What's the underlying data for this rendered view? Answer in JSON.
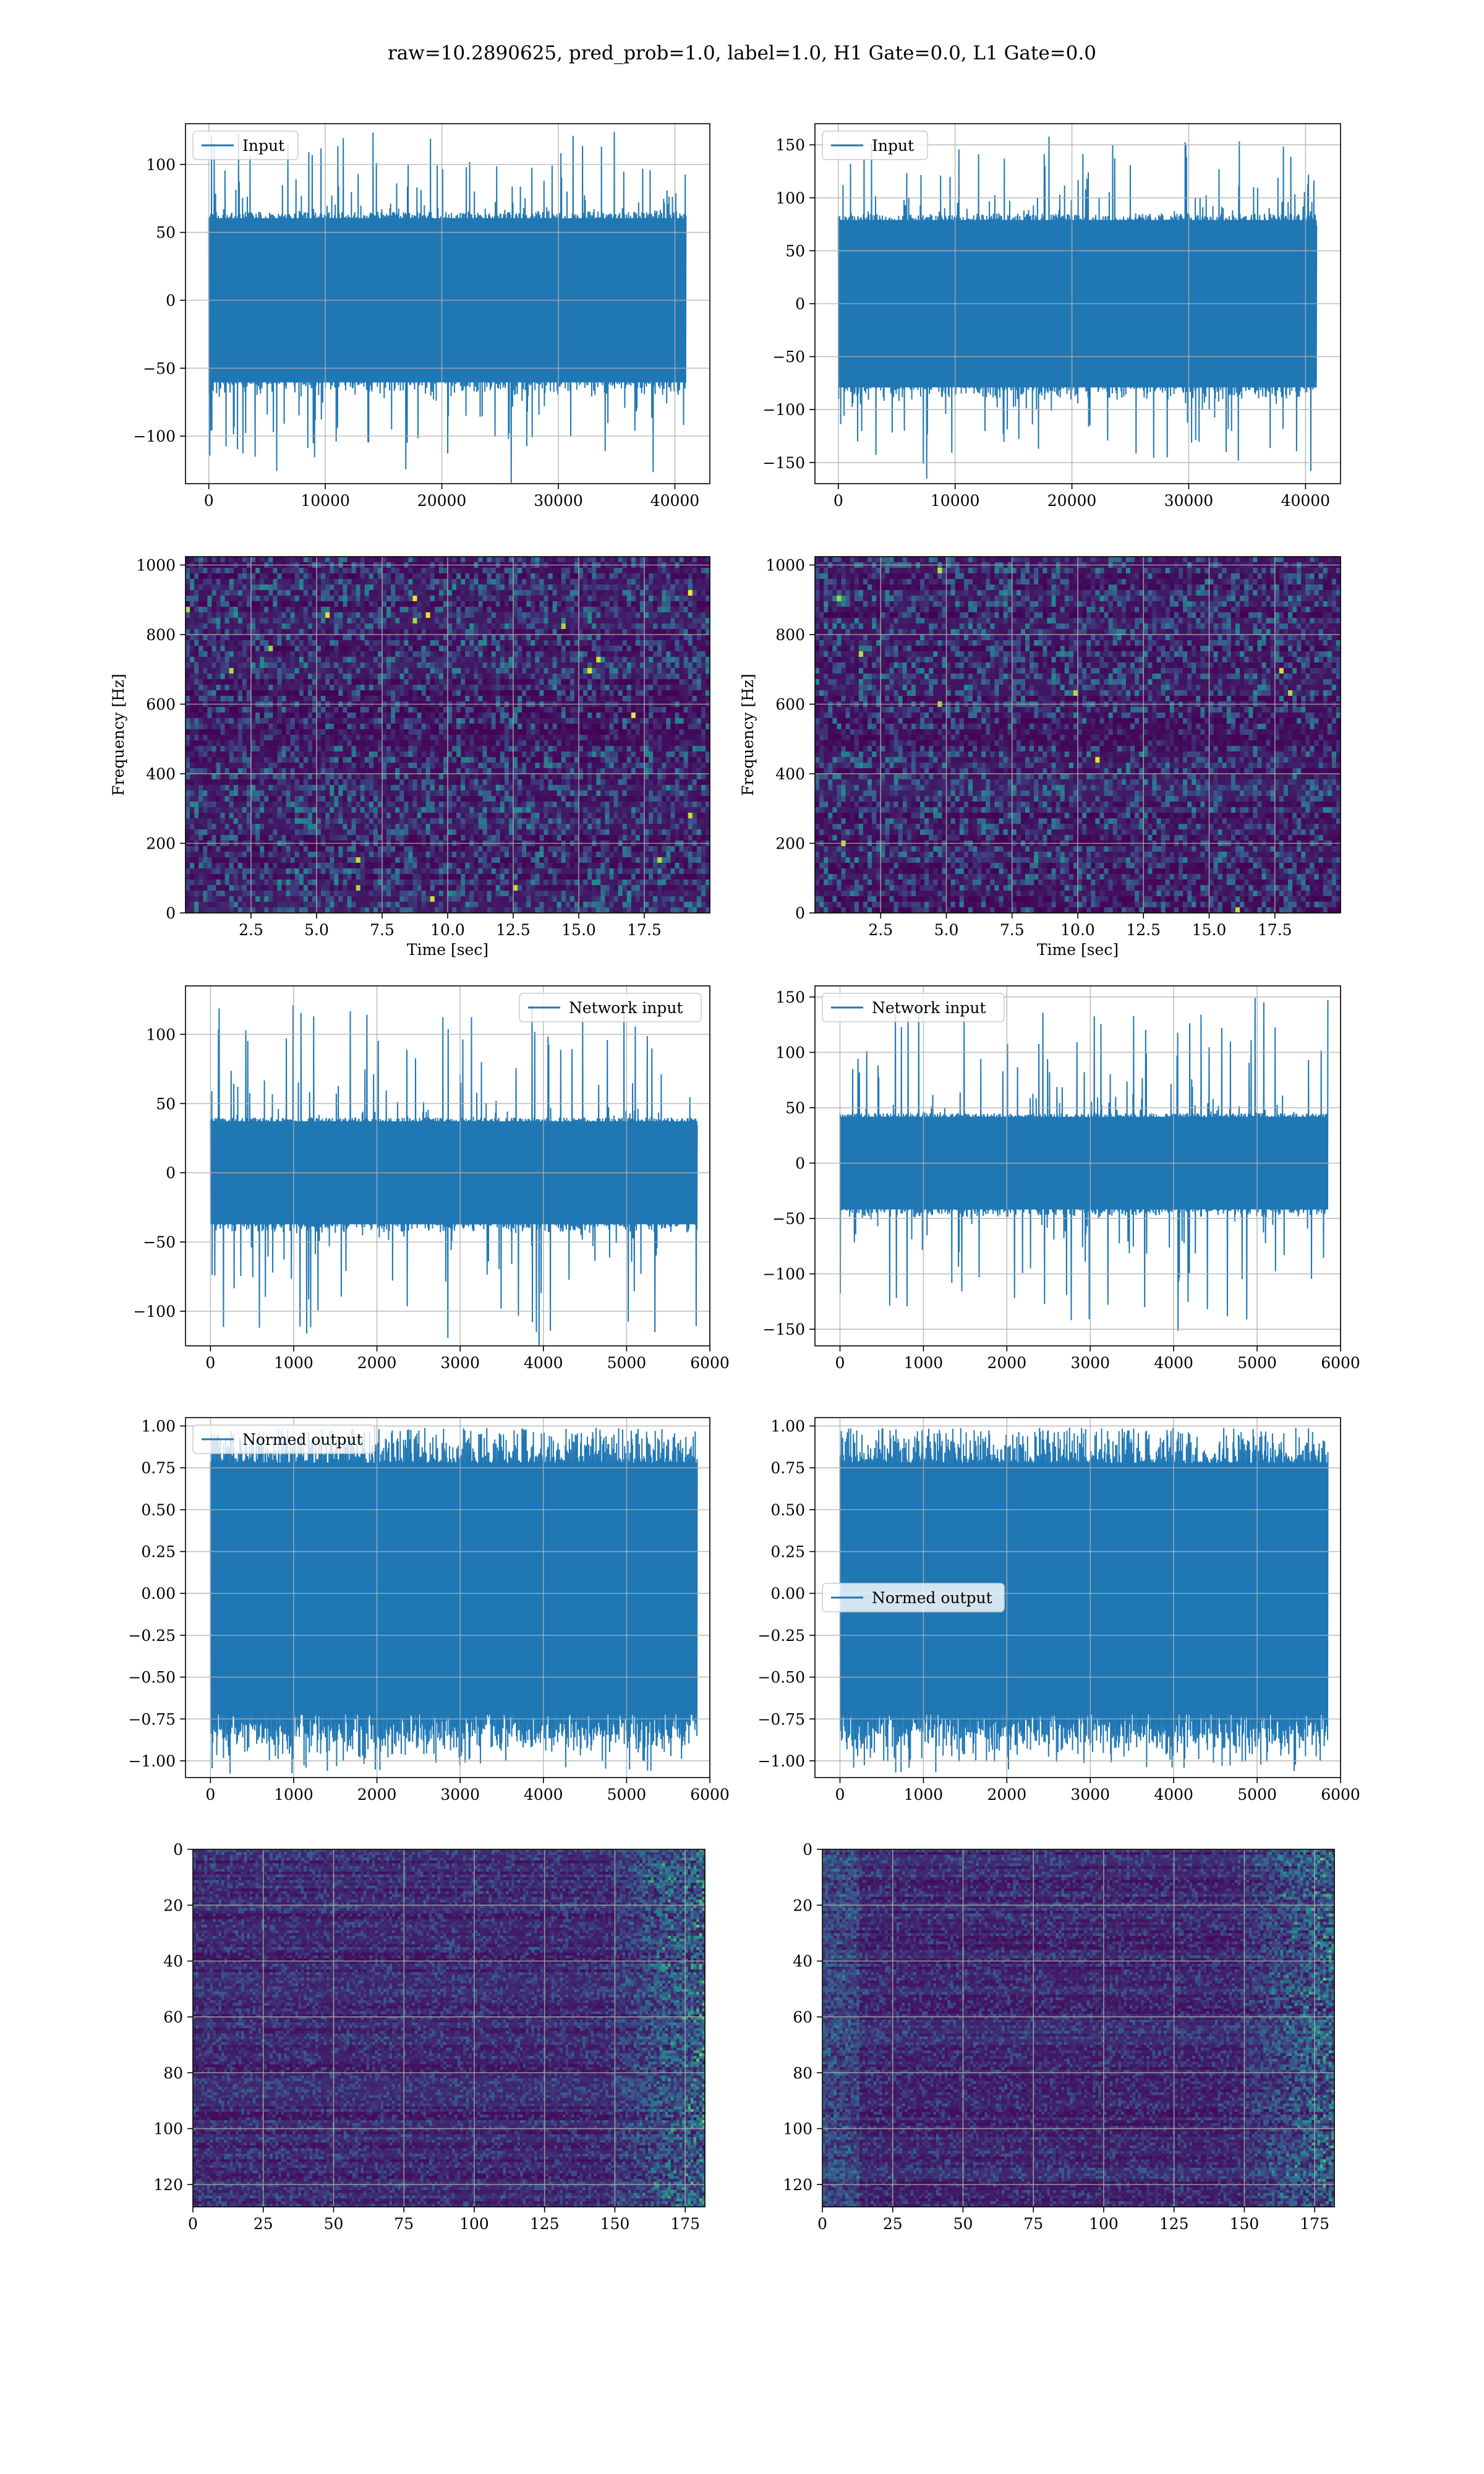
{
  "figure": {
    "title": "raw=10.2890625, pred_prob=1.0, label=1.0, H1 Gate=0.0, L1 Gate=0.0"
  },
  "colors": {
    "line": "#1f77b4",
    "grid": "#b0b0b0",
    "viridis_low": "#440154",
    "viridis_mid": "#21918c",
    "viridis_high": "#fde725"
  },
  "chart_data": [
    {
      "id": "input-h1",
      "type": "line",
      "legend_label": "Input",
      "legend_loc": "upper left",
      "xlim": [
        -2000,
        43000
      ],
      "ylim": [
        -135,
        130
      ],
      "xticks": [
        0,
        10000,
        20000,
        30000,
        40000
      ],
      "yticks": [
        -100,
        -50,
        0,
        50,
        100
      ],
      "series": [
        {
          "name": "Input",
          "n": 40960,
          "x_range": [
            0,
            40960
          ],
          "core_amp": 65,
          "peak_amp": 125,
          "burst_max": 0
        }
      ],
      "grid": true
    },
    {
      "id": "input-l1",
      "type": "line",
      "legend_label": "Input",
      "legend_loc": "upper left",
      "xlim": [
        -2000,
        43000
      ],
      "ylim": [
        -170,
        170
      ],
      "xticks": [
        0,
        10000,
        20000,
        30000,
        40000
      ],
      "yticks": [
        -150,
        -100,
        -50,
        0,
        50,
        100,
        150
      ],
      "series": [
        {
          "name": "Input",
          "n": 40960,
          "x_range": [
            0,
            40960
          ],
          "core_amp": 85,
          "peak_amp": 158,
          "burst_max": 0
        }
      ],
      "grid": true
    },
    {
      "id": "spec-h1",
      "type": "heatmap",
      "xlabel": "Time [sec]",
      "ylabel": "Frequency [Hz]",
      "xlim": [
        0,
        20
      ],
      "ylim": [
        0,
        1024
      ],
      "xticks": [
        2.5,
        5.0,
        7.5,
        10.0,
        12.5,
        15.0,
        17.5
      ],
      "yticks": [
        0,
        200,
        400,
        600,
        800,
        1000
      ],
      "colormap": "viridis",
      "grid": true
    },
    {
      "id": "spec-l1",
      "type": "heatmap",
      "xlabel": "Time [sec]",
      "ylabel": "Frequency [Hz]",
      "xlim": [
        0,
        20
      ],
      "ylim": [
        0,
        1024
      ],
      "xticks": [
        2.5,
        5.0,
        7.5,
        10.0,
        12.5,
        15.0,
        17.5
      ],
      "yticks": [
        0,
        200,
        400,
        600,
        800,
        1000
      ],
      "colormap": "viridis",
      "grid": true
    },
    {
      "id": "netin-h1",
      "type": "line",
      "legend_label": "Network input",
      "legend_loc": "upper right",
      "xlim": [
        -300,
        6000
      ],
      "ylim": [
        -125,
        135
      ],
      "xticks": [
        0,
        1000,
        2000,
        3000,
        4000,
        5000,
        6000
      ],
      "yticks": [
        -100,
        -50,
        0,
        50,
        100
      ],
      "series": [
        {
          "name": "Network input",
          "n": 5850,
          "x_range": [
            0,
            5850
          ],
          "core_amp": 40,
          "peak_amp": 125,
          "burst_max": 0
        }
      ],
      "grid": true
    },
    {
      "id": "netin-l1",
      "type": "line",
      "legend_label": "Network input",
      "legend_loc": "upper left",
      "xlim": [
        -300,
        6000
      ],
      "ylim": [
        -165,
        160
      ],
      "xticks": [
        0,
        1000,
        2000,
        3000,
        4000,
        5000,
        6000
      ],
      "yticks": [
        -150,
        -100,
        -50,
        0,
        50,
        100,
        150
      ],
      "series": [
        {
          "name": "Network input",
          "n": 5850,
          "x_range": [
            0,
            5850
          ],
          "core_amp": 45,
          "peak_amp": 150,
          "burst_max": 0
        }
      ],
      "grid": true
    },
    {
      "id": "normed-h1",
      "type": "line",
      "legend_label": "Normed output",
      "legend_loc": "upper left",
      "xlim": [
        -300,
        6000
      ],
      "ylim": [
        -1.1,
        1.05
      ],
      "xticks": [
        0,
        1000,
        2000,
        3000,
        4000,
        5000,
        6000
      ],
      "yticks": [
        -1.0,
        -0.75,
        -0.5,
        -0.25,
        0.0,
        0.25,
        0.5,
        0.75,
        1.0
      ],
      "series": [
        {
          "name": "Normed output",
          "n": 5850,
          "x_range": [
            0,
            5850
          ],
          "core_amp": 0.78,
          "peak_amp": 0.99,
          "burst_max": 0.99
        }
      ],
      "grid": true
    },
    {
      "id": "normed-l1",
      "type": "line",
      "legend_label": "Normed output",
      "legend_loc": "center left",
      "xlim": [
        -300,
        6000
      ],
      "ylim": [
        -1.1,
        1.05
      ],
      "xticks": [
        0,
        1000,
        2000,
        3000,
        4000,
        5000,
        6000
      ],
      "yticks": [
        -1.0,
        -0.75,
        -0.5,
        -0.25,
        0.0,
        0.25,
        0.5,
        0.75,
        1.0
      ],
      "series": [
        {
          "name": "Normed output",
          "n": 5850,
          "x_range": [
            0,
            5850
          ],
          "core_amp": 0.78,
          "peak_amp": 0.99,
          "burst_max": 0.99
        }
      ],
      "grid": true
    },
    {
      "id": "feat-h1",
      "type": "heatmap",
      "xlim": [
        0,
        182
      ],
      "ylim": [
        128,
        0
      ],
      "xticks": [
        0,
        25,
        50,
        75,
        100,
        125,
        150,
        175
      ],
      "yticks": [
        0,
        20,
        40,
        60,
        80,
        100,
        120
      ],
      "colormap": "viridis",
      "grid": true
    },
    {
      "id": "feat-l1",
      "type": "heatmap",
      "xlim": [
        0,
        182
      ],
      "ylim": [
        128,
        0
      ],
      "xticks": [
        0,
        25,
        50,
        75,
        100,
        125,
        150,
        175
      ],
      "yticks": [
        0,
        20,
        40,
        60,
        80,
        100,
        120
      ],
      "colormap": "viridis",
      "grid": true
    }
  ]
}
